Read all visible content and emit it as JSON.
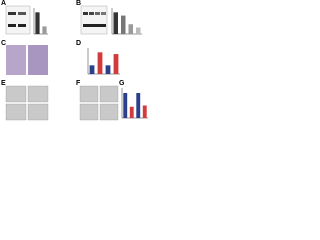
{
  "panels": [
    {
      "label": "A",
      "bars": [
        1.0,
        0.35
      ],
      "ylim": [
        0,
        1.2
      ],
      "colors": [
        "#333333",
        "#9a9a9a"
      ]
    },
    {
      "label": "B",
      "bars": [
        1.0,
        0.85,
        0.45,
        0.3
      ],
      "ylim": [
        0,
        1.2
      ],
      "colors": [
        "#333333",
        "#777777",
        "#9a9a9a",
        "#bbbbbb"
      ]
    },
    {
      "label": "C"
    },
    {
      "label": "D",
      "bars": [
        1.0,
        2.5,
        1.0,
        2.3
      ],
      "ylim": [
        0,
        3
      ],
      "colors": [
        "#2b3f8c",
        "#d23b3b",
        "#2b3f8c",
        "#d23b3b"
      ]
    },
    {
      "label": "E"
    },
    {
      "label": "F"
    },
    {
      "label": "G",
      "bars": [
        1.0,
        0.45,
        1.0,
        0.5
      ],
      "ylim": [
        0,
        1.2
      ],
      "colors": [
        "#2b3f8c",
        "#d23b3b",
        "#2b3f8c",
        "#d23b3b"
      ]
    }
  ]
}
